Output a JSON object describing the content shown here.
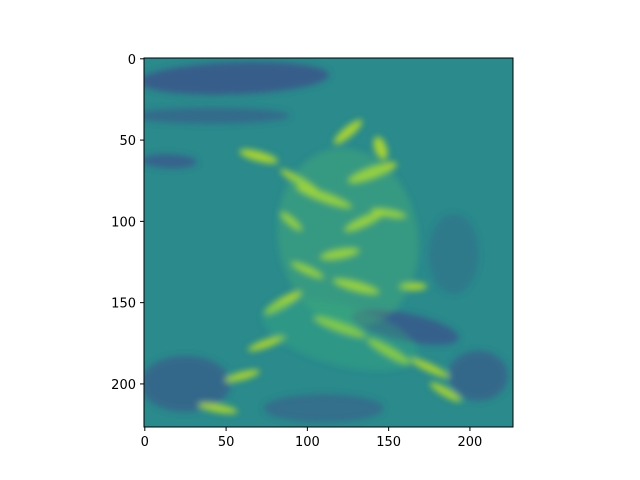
{
  "chart_data": {
    "type": "heatmap",
    "title": "",
    "xlabel": "",
    "ylabel": "",
    "x_ticks": [
      0,
      50,
      100,
      150,
      200
    ],
    "y_ticks": [
      0,
      50,
      100,
      150,
      200
    ],
    "xlim": [
      -0.5,
      226.5
    ],
    "ylim": [
      226.5,
      -0.5
    ],
    "image_shape": [
      227,
      227
    ],
    "colormap": "viridis",
    "y_axis_inverted": true,
    "grid": false,
    "colors": {
      "low": "#3b528b",
      "mid": "#21918c",
      "high": "#bddf26"
    }
  }
}
